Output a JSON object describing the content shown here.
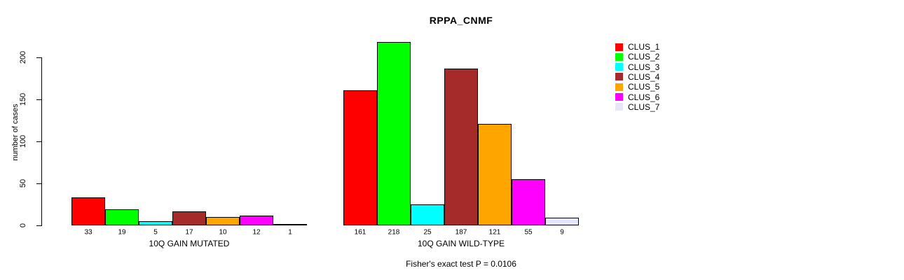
{
  "chart_data": {
    "type": "bar",
    "title": "RPPA_CNMF",
    "xlabel": "",
    "ylabel": "number of cases",
    "ylim": [
      0,
      220
    ],
    "yticks": [
      0,
      50,
      100,
      150,
      200
    ],
    "grid": false,
    "legend_position": "right",
    "legend": [
      "CLUS_1",
      "CLUS_2",
      "CLUS_3",
      "CLUS_4",
      "CLUS_5",
      "CLUS_6",
      "CLUS_7"
    ],
    "colors": [
      "#ff0000",
      "#00ff00",
      "#00ffff",
      "#a52a2a",
      "#ffa500",
      "#ff00ff",
      "#e6e6fa"
    ],
    "groups": [
      {
        "label": "10Q GAIN MUTATED",
        "values": [
          33,
          19,
          5,
          17,
          10,
          12,
          1
        ]
      },
      {
        "label": "10Q GAIN WILD-TYPE",
        "values": [
          161,
          218,
          25,
          187,
          121,
          55,
          9
        ]
      }
    ],
    "annotation": "Fisher's exact test P = 0.0106"
  }
}
